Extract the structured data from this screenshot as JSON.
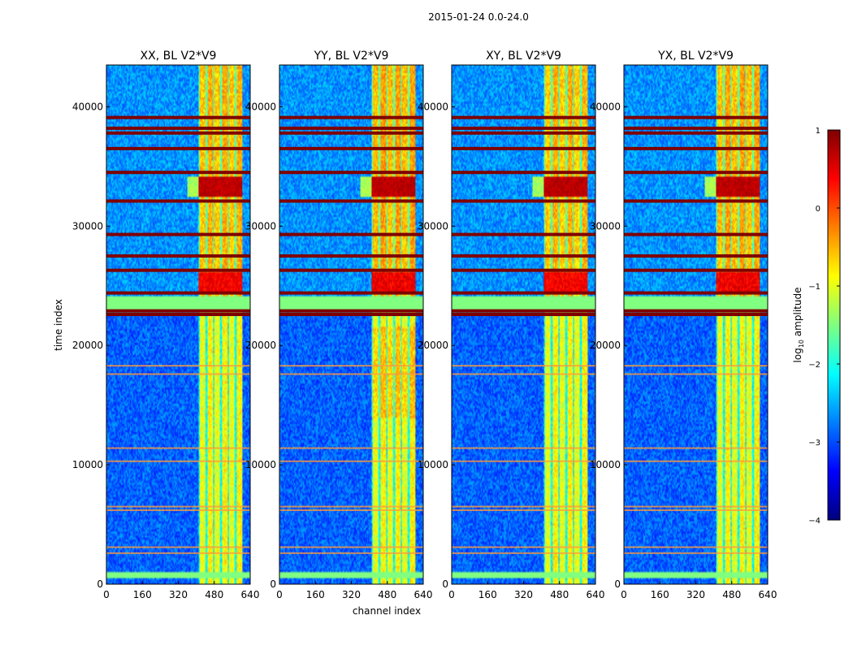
{
  "figure": {
    "suptitle": "2015-01-24 0.0-24.0",
    "xlabel": "channel index",
    "ylabel": "time index"
  },
  "colorbar": {
    "label": "log10 amplitude",
    "label_base": "log",
    "label_sub": "10",
    "label_rest": " amplitude",
    "ticks": [
      "1",
      "0",
      "−1",
      "−2",
      "−3",
      "−4"
    ],
    "range": [
      -4,
      1
    ],
    "colormap": "jet",
    "colors": [
      "#00007f",
      "#0000ff",
      "#007fff",
      "#00ffff",
      "#7fff7f",
      "#ffff00",
      "#ff7f00",
      "#ff0000",
      "#7f0000"
    ]
  },
  "chart_data": {
    "type": "heatmap",
    "xlim": [
      0,
      640
    ],
    "ylim": [
      0,
      43500
    ],
    "xticks": [
      "0",
      "160",
      "320",
      "480",
      "640"
    ],
    "xtick_values": [
      0,
      160,
      320,
      480,
      640
    ],
    "yticks": [
      "0",
      "10000",
      "20000",
      "30000",
      "40000"
    ],
    "ytick_values": [
      0,
      10000,
      20000,
      30000,
      40000
    ],
    "value_scale": "log10 amplitude, -4 to 1",
    "panels": [
      {
        "title": "XX, BL V2*V9",
        "band_strength": 0.85
      },
      {
        "title": "YY, BL V2*V9",
        "band_strength": 1.0
      },
      {
        "title": "XY, BL V2*V9",
        "band_strength": 0.8
      },
      {
        "title": "YX, BL V2*V9",
        "band_strength": 0.95
      }
    ],
    "features": {
      "background_level": -2.9,
      "band_channels": [
        410,
        605
      ],
      "band_level": -1.0,
      "flagged_rows_green": [
        [
          500,
          1100
        ],
        [
          22800,
          24100
        ]
      ],
      "flagged_level": -1.5,
      "saturated_rows": [
        22600,
        22900,
        24400,
        26300,
        27500,
        29300,
        32100,
        34500,
        36500,
        37800,
        38200,
        39100
      ],
      "hot_region": [
        32500,
        34200
      ],
      "upper_noisy_range": [
        24100,
        43500
      ],
      "lower_quiet_range": [
        0,
        22600
      ],
      "orange_lines": [
        2600,
        3100,
        6200,
        6500,
        10300,
        11400,
        17600,
        18300
      ]
    }
  }
}
